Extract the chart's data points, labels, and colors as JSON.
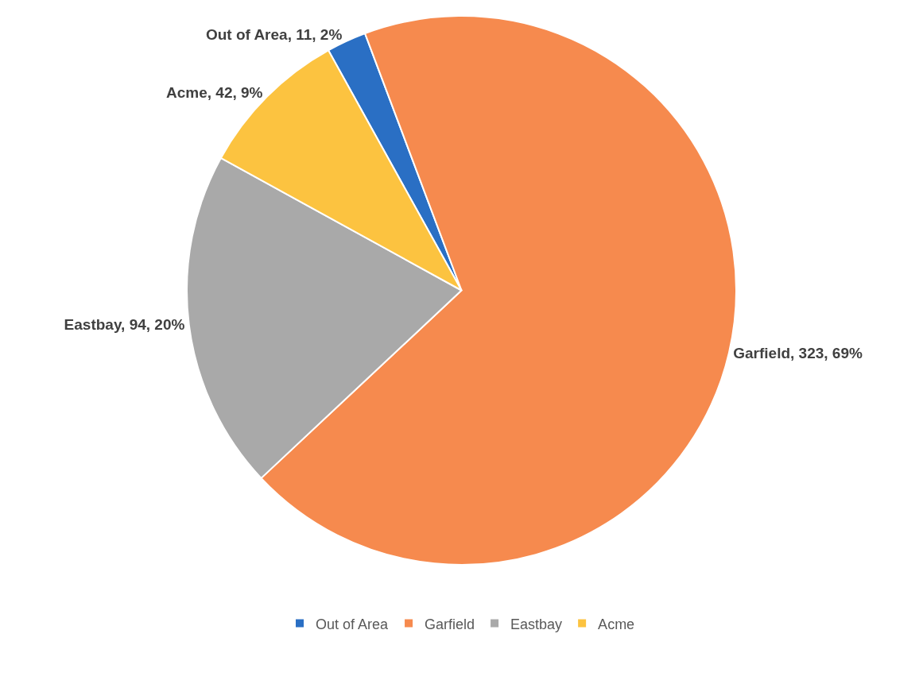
{
  "chart_data": {
    "type": "pie",
    "categories": [
      "Out of Area",
      "Garfield",
      "Eastbay",
      "Acme"
    ],
    "values": [
      11,
      323,
      94,
      42
    ],
    "colors": [
      "#2a6fc4",
      "#f68a4e",
      "#a9a9a9",
      "#fcc340"
    ],
    "value_labels": [
      "Out of Area, 11, 2%",
      "Garfield, 323, 69%",
      "Eastbay, 94, 20%",
      "Acme, 42, 9%"
    ],
    "legend": "bottom"
  }
}
